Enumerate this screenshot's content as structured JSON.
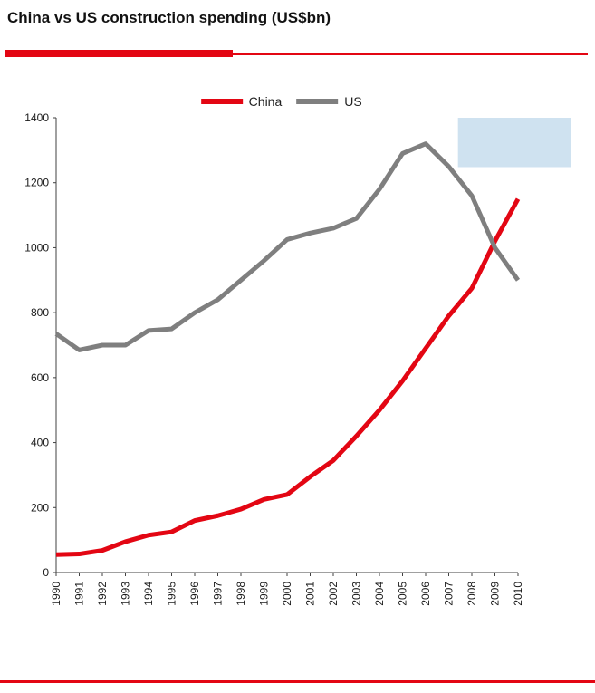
{
  "title": "China vs US construction spending (US$bn)",
  "colors": {
    "accent_red": "#e30613",
    "us_gray": "#7f7f7f",
    "highlight_blue": "#cfe2f0",
    "axis": "#404040",
    "tick_text": "#1a1a1a"
  },
  "chart_data": {
    "type": "line",
    "title": "China vs US construction spending (US$bn)",
    "x": [
      1990,
      1991,
      1992,
      1993,
      1994,
      1995,
      1996,
      1997,
      1998,
      1999,
      2000,
      2001,
      2002,
      2003,
      2004,
      2005,
      2006,
      2007,
      2008,
      2009,
      2010
    ],
    "x_range": [
      1990,
      2010
    ],
    "ylim": [
      0,
      1400
    ],
    "ytick_step": 200,
    "grid": false,
    "legend_position": "top-center",
    "series": [
      {
        "name": "China",
        "color": "#e30613",
        "values": [
          55,
          57,
          68,
          95,
          115,
          125,
          160,
          175,
          195,
          225,
          240,
          295,
          345,
          420,
          500,
          590,
          690,
          790,
          875,
          1020,
          1150
        ]
      },
      {
        "name": "US",
        "color": "#7f7f7f",
        "values": [
          735,
          685,
          700,
          700,
          745,
          750,
          800,
          840,
          900,
          960,
          1025,
          1045,
          1060,
          1090,
          1180,
          1290,
          1320,
          1250,
          1160,
          1000,
          900
        ]
      }
    ],
    "annotations": [
      {
        "type": "box",
        "x_range": [
          2007.4,
          2012.3
        ],
        "y_range": [
          1248,
          1400
        ],
        "color": "#cfe2f0"
      }
    ]
  }
}
